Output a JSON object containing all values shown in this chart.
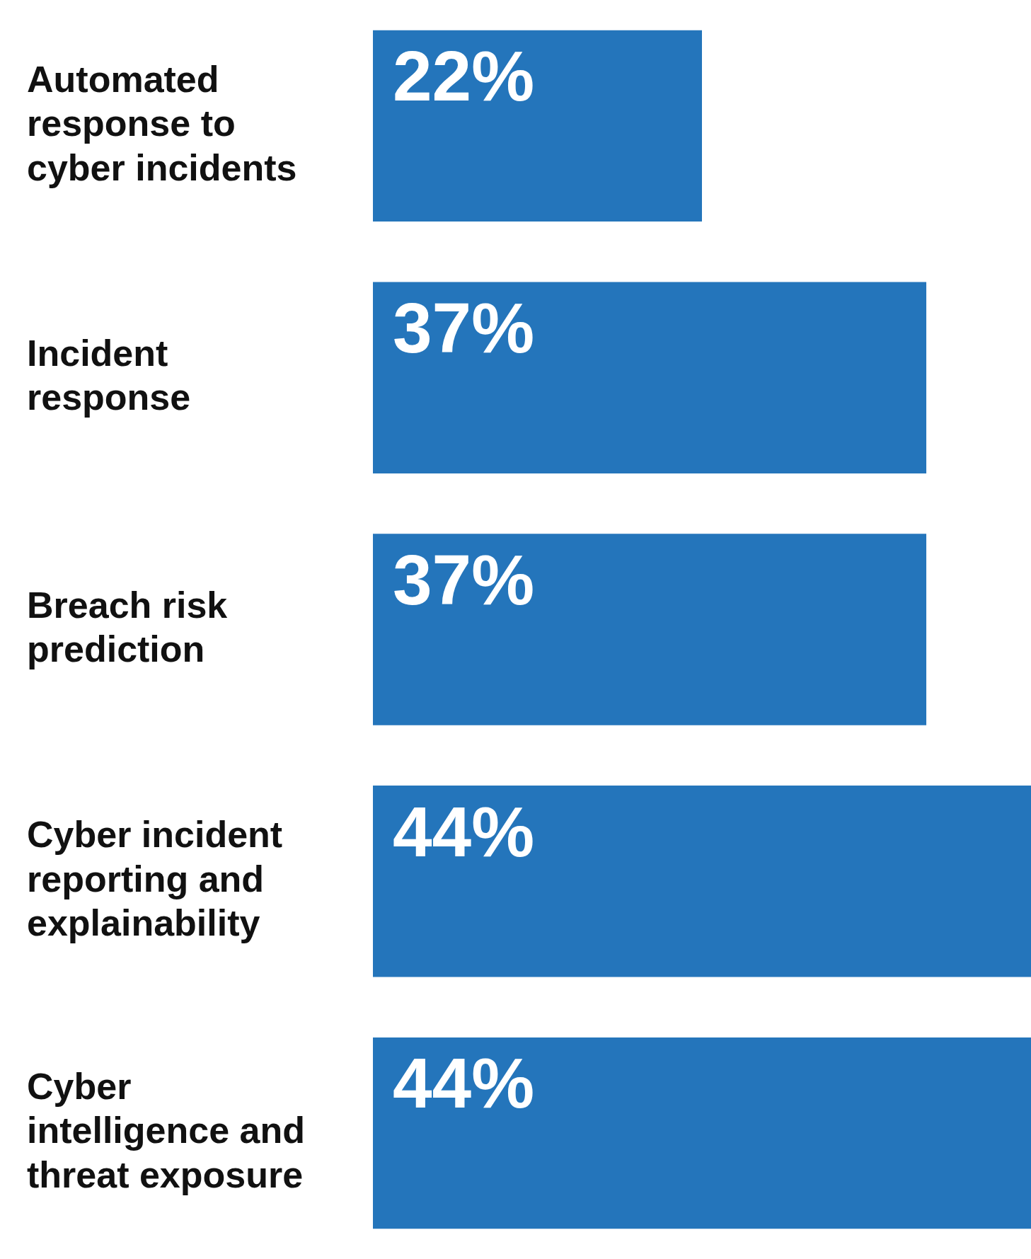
{
  "chart_data": {
    "type": "bar",
    "orientation": "horizontal",
    "categories": [
      "Automated response to cyber incidents",
      "Incident response",
      "Breach risk prediction",
      "Cyber incident reporting and explainability",
      "Cyber intelligence and threat exposure"
    ],
    "values": [
      22,
      37,
      37,
      44,
      44
    ],
    "color": "#2475bb",
    "value_labels": [
      "22%",
      "37%",
      "37%",
      "44%",
      "44%"
    ],
    "legend": false
  }
}
